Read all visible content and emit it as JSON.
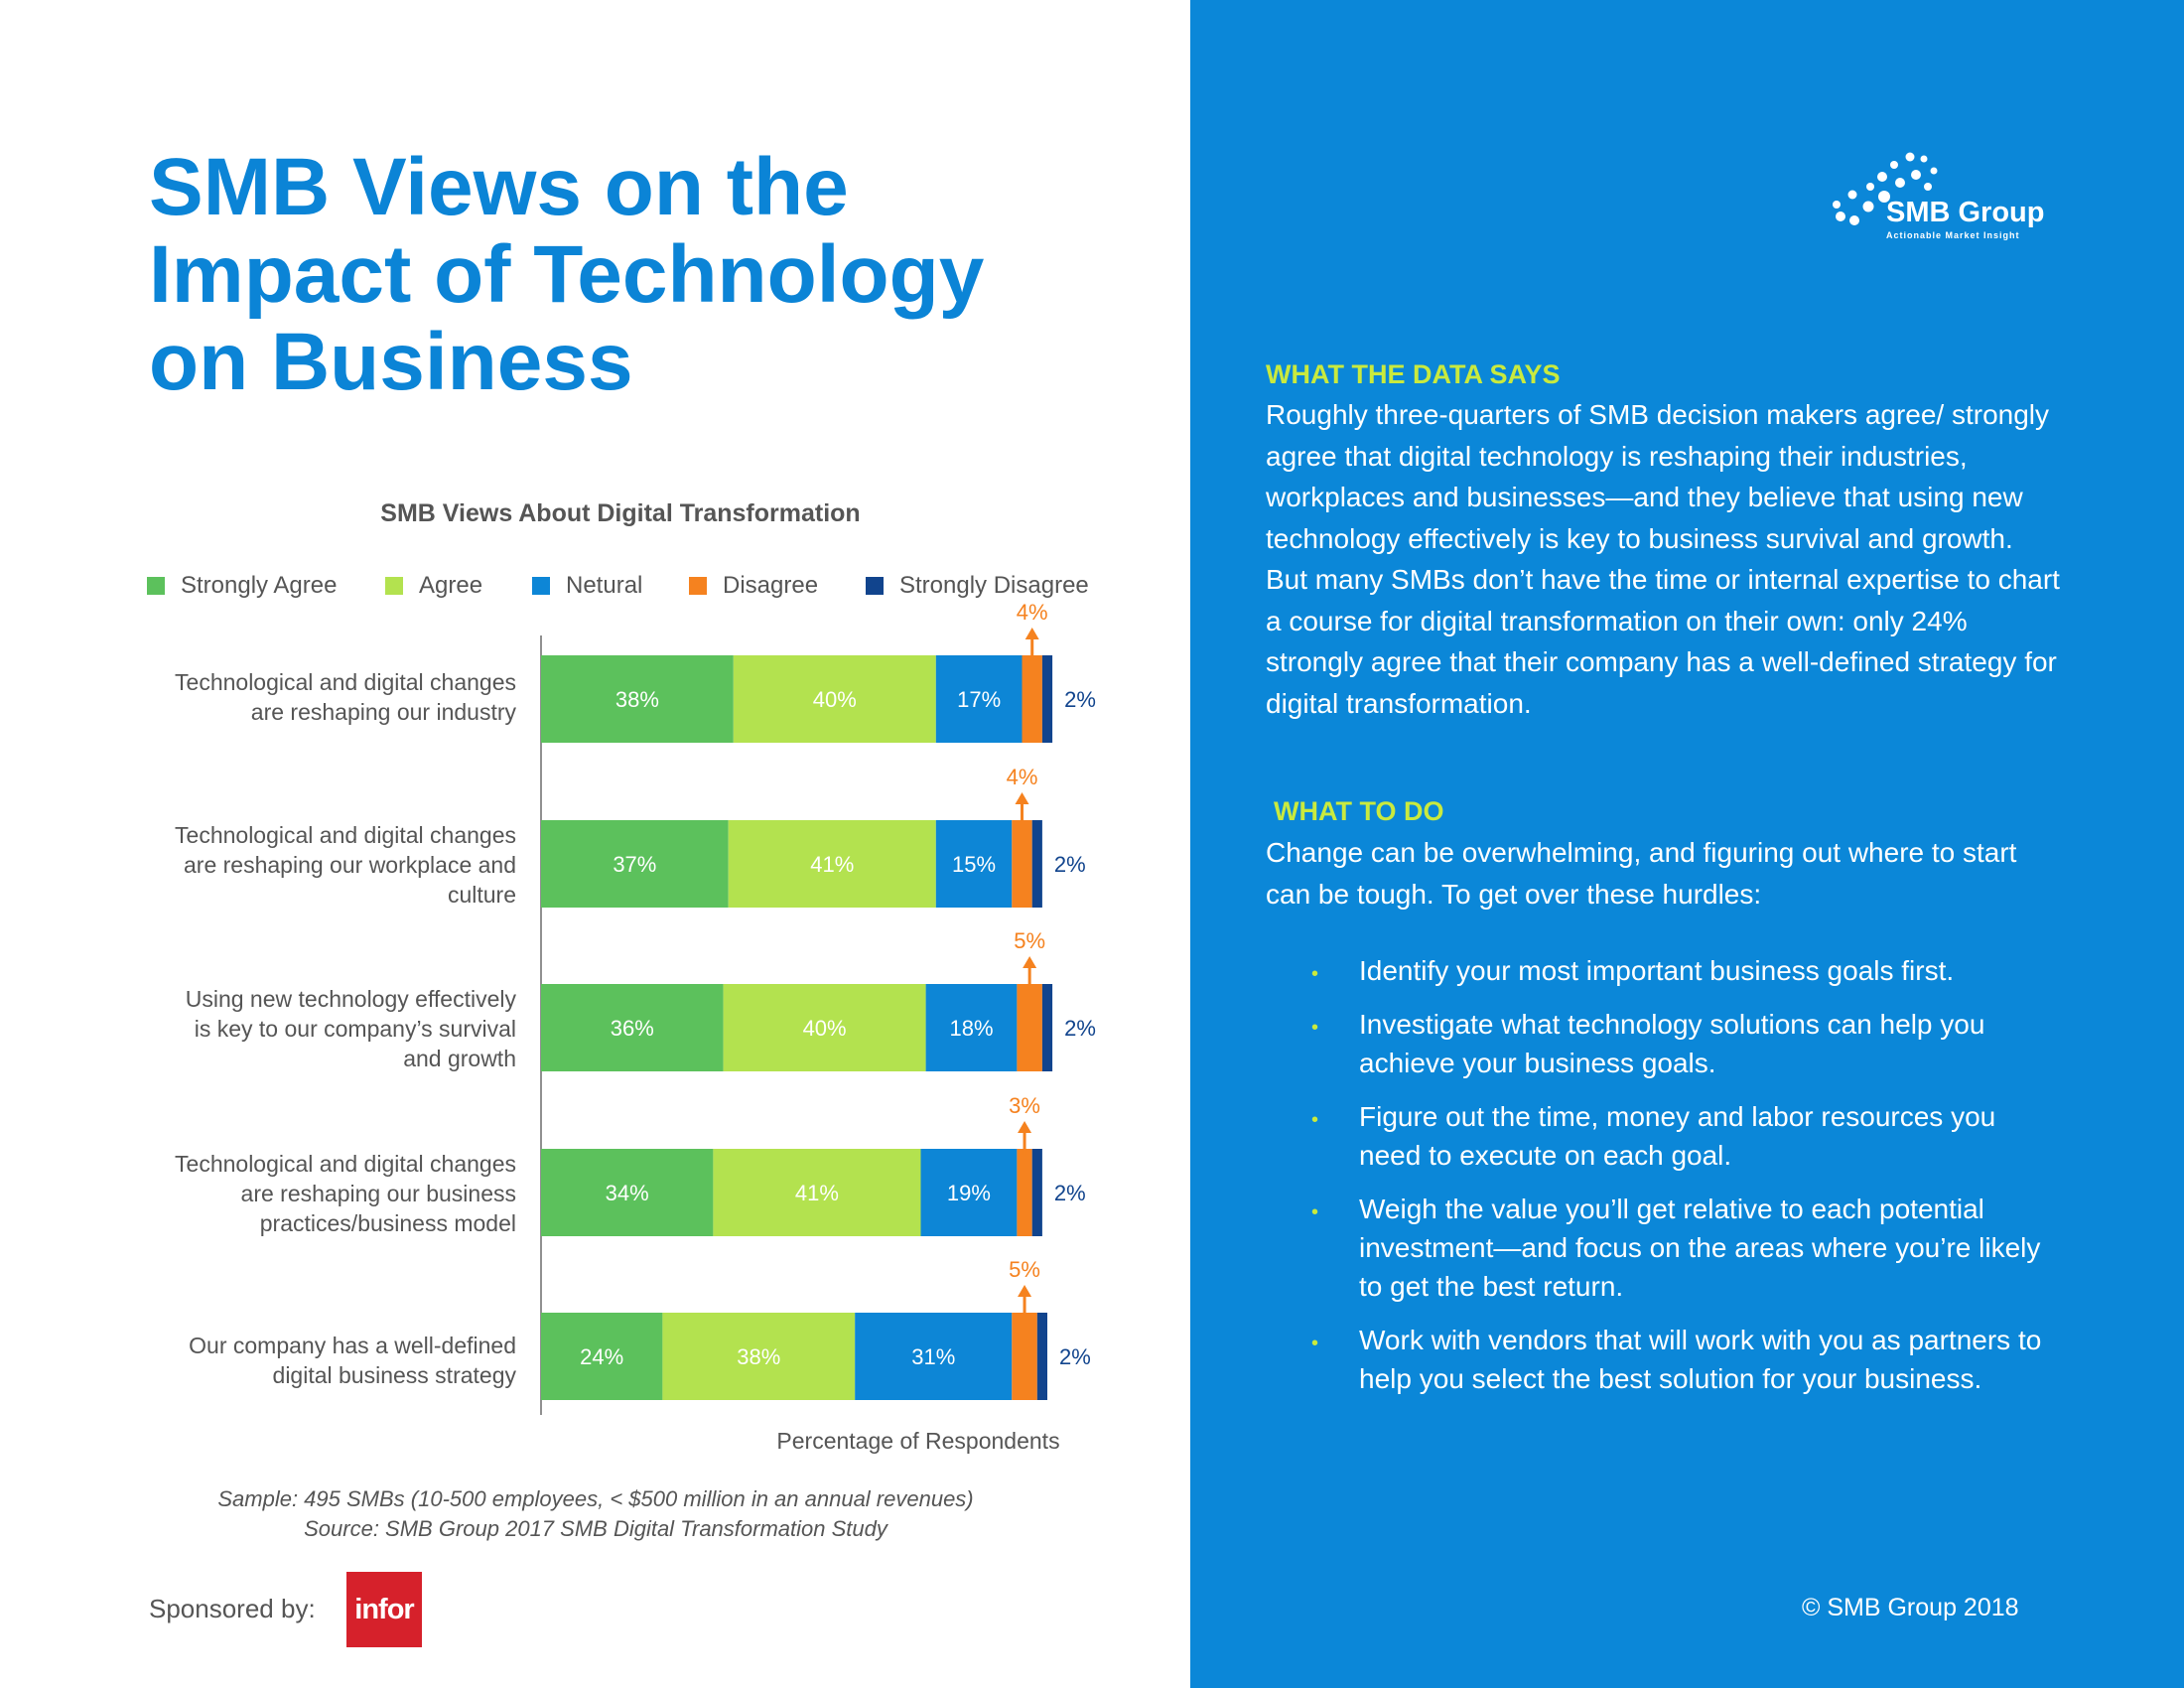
{
  "page": {
    "title_lines": [
      "SMB Views on the",
      "Impact of Technology",
      "on Business"
    ],
    "colors": {
      "title_blue": "#0b84d6",
      "panel_blue": "#0b87d8",
      "accent_green": "#c9ea3e"
    }
  },
  "chart_data": {
    "type": "bar",
    "orientation": "horizontal",
    "stacked": true,
    "title": "SMB Views About Digital Transformation",
    "xlabel": "Percentage of Respondents",
    "ylabel": "",
    "xlim": [
      0,
      100
    ],
    "legend_position": "top",
    "grid": false,
    "categories": [
      [
        "Technological and digital changes",
        "are reshaping our industry"
      ],
      [
        "Technological and digital changes",
        "are reshaping our workplace and",
        "culture"
      ],
      [
        "Using new technology effectively",
        "is key to our company’s survival",
        "and growth"
      ],
      [
        "Technological and digital changes",
        "are reshaping our business",
        "practices/business model"
      ],
      [
        "Our company has a well-defined",
        "digital business strategy"
      ]
    ],
    "series": [
      {
        "name": "Strongly Agree",
        "color": "#5cc15c",
        "values": [
          38,
          37,
          36,
          34,
          24
        ]
      },
      {
        "name": "Agree",
        "color": "#b3e24f",
        "values": [
          40,
          41,
          40,
          41,
          38
        ]
      },
      {
        "name": "Netural",
        "color": "#0d86d6",
        "values": [
          17,
          15,
          18,
          19,
          31
        ]
      },
      {
        "name": "Disagree",
        "color": "#f5821f",
        "values": [
          4,
          4,
          5,
          3,
          5
        ]
      },
      {
        "name": "Strongly Disagree",
        "color": "#11448d",
        "values": [
          2,
          2,
          2,
          2,
          2
        ]
      }
    ],
    "data_labels": [
      [
        "38%",
        "40%",
        "17%",
        "4%",
        "2%"
      ],
      [
        "37%",
        "41%",
        "15%",
        "4%",
        "2%"
      ],
      [
        "36%",
        "40%",
        "18%",
        "5%",
        "2%"
      ],
      [
        "34%",
        "41%",
        "19%",
        "3%",
        "2%"
      ],
      [
        "24%",
        "38%",
        "31%",
        "5%",
        "2%"
      ]
    ]
  },
  "notes": [
    "Sample: 495 SMBs (10-500 employees, < $500 million in an annual revenues)",
    "Source: SMB Group 2017 SMB Digital Transformation Study"
  ],
  "sponsor": {
    "label": "Sponsored by:",
    "logo_text": "infor"
  },
  "brand": {
    "name": "SMB Group",
    "tagline": "Actionable Market Insight"
  },
  "sidebar": {
    "data_heading": "WHAT THE DATA SAYS",
    "data_paragraph": "Roughly three-quarters of SMB decision makers agree/ strongly agree that digital technology is reshaping their industries, workplaces and businesses—and they believe that using new technology effectively is key to business survival and growth. But many SMBs don’t have the time or internal expertise to chart a course for digital transformation on their own: only 24% strongly agree that their company has a well-defined strategy for digital transformation.",
    "todo_heading": "WHAT TO DO",
    "todo_paragraph": "Change can be overwhelming, and figuring out where to start can be tough. To get over these hurdles:",
    "bullets": [
      "Identify your most important business goals first.",
      "Investigate what technology solutions can help you achieve your business goals.",
      "Figure out the time, money and labor resources you need to execute on each goal.",
      "Weigh the value you’ll get relative to each potential investment—and focus on the areas where you’re likely to get the best return.",
      "Work with vendors that will work with you as partners to help you select the best solution for your business."
    ],
    "bullet_glyph": "•",
    "copyright": "© SMB Group 2018"
  }
}
